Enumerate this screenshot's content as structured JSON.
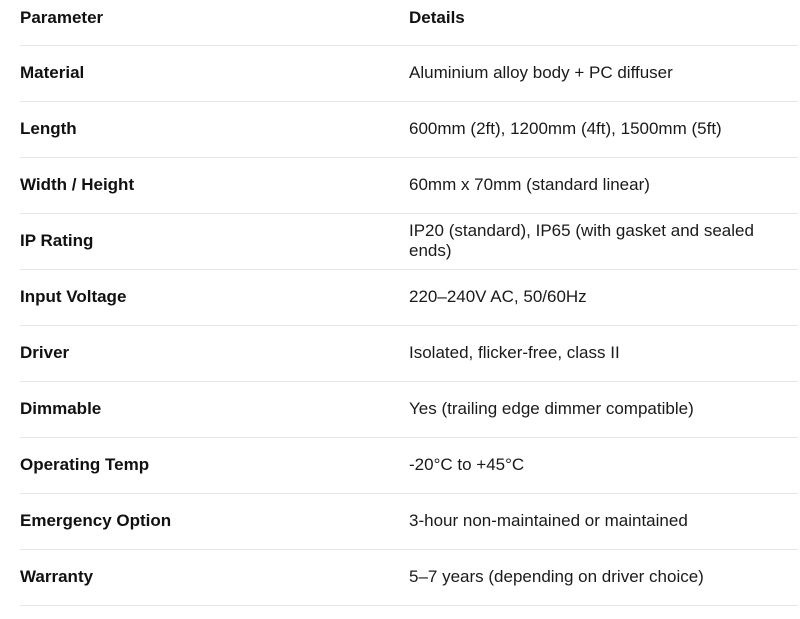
{
  "table": {
    "headers": [
      "Parameter",
      "Details"
    ],
    "rows": [
      [
        "Material",
        "Aluminium alloy body + PC diffuser"
      ],
      [
        "Length",
        "600mm (2ft), 1200mm (4ft), 1500mm (5ft)"
      ],
      [
        "Width / Height",
        "60mm x 70mm (standard linear)"
      ],
      [
        "IP Rating",
        "IP20 (standard), IP65 (with gasket and sealed ends)"
      ],
      [
        "Input Voltage",
        "220–240V AC, 50/60Hz"
      ],
      [
        "Driver",
        "Isolated, flicker-free, class II"
      ],
      [
        "Dimmable",
        "Yes (trailing edge dimmer compatible)"
      ],
      [
        "Operating Temp",
        "-20°C to +45°C"
      ],
      [
        "Emergency Option",
        "3-hour non-maintained or maintained"
      ],
      [
        "Warranty",
        "5–7 years (depending on driver choice)"
      ]
    ]
  }
}
